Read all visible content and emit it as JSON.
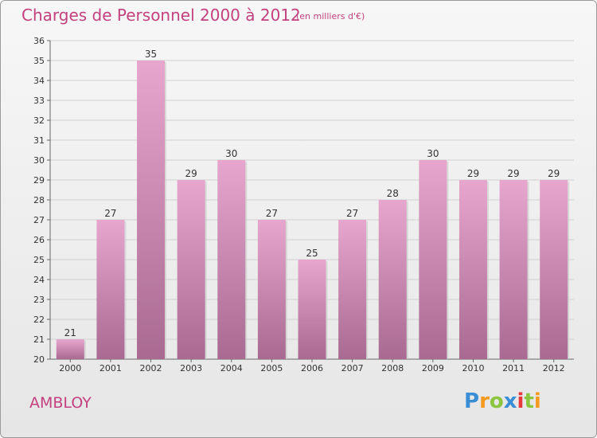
{
  "header": {
    "title": "Charges de Personnel 2000 à 2012",
    "unit_note": "(en milliers d'€)"
  },
  "footer": {
    "commune": "AMBLOY",
    "brand": "Proxiti"
  },
  "colors": {
    "bar_top": "#e6a6cd",
    "bar_bottom": "#a96a92",
    "accent": "#c2417e"
  },
  "chart_data": {
    "type": "bar",
    "title": "Charges de Personnel 2000 à 2012",
    "subtitle": "(en milliers d'€)",
    "categories": [
      "2000",
      "2001",
      "2002",
      "2003",
      "2004",
      "2005",
      "2006",
      "2007",
      "2008",
      "2009",
      "2010",
      "2011",
      "2012"
    ],
    "values": [
      21,
      27,
      35,
      29,
      30,
      27,
      25,
      27,
      28,
      30,
      29,
      29,
      29
    ],
    "ylim": [
      20,
      36
    ],
    "yticks": [
      20,
      21,
      22,
      23,
      24,
      25,
      26,
      27,
      28,
      29,
      30,
      31,
      32,
      33,
      34,
      35,
      36
    ],
    "grid": true,
    "legend": "none"
  }
}
